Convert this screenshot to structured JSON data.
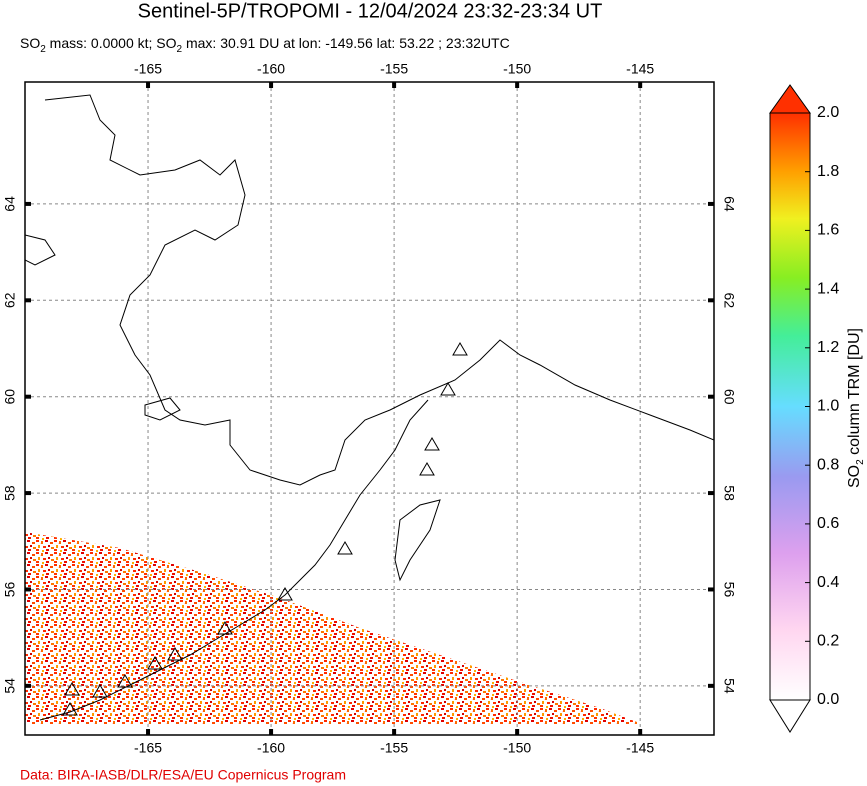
{
  "title": "Sentinel-5P/TROPOMI - 12/04/2024 23:32-23:34 UT",
  "subtitle": [
    "SO",
    "2",
    " mass: 0.0000 kt; SO",
    "2",
    " max: 30.91 DU at lon: -149.56 lat: 53.22 ; 23:32UTC"
  ],
  "map": {
    "xlim": [
      -170,
      -142
    ],
    "ylim": [
      52.98,
      66.53
    ],
    "xticks": [
      -165,
      -160,
      -155,
      -150,
      -145
    ],
    "yticks": [
      54,
      56,
      58,
      60,
      62,
      64
    ],
    "grid": true
  },
  "colorbar": {
    "label": [
      "SO",
      "2",
      " column TRM [DU]"
    ],
    "lim": [
      0,
      2
    ],
    "ticks": [
      {
        "value": 0,
        "label": "0.0"
      },
      {
        "value": 0.2,
        "label": "0.2"
      },
      {
        "value": 0.4,
        "label": "0.4"
      },
      {
        "value": 0.6,
        "label": "0.6"
      },
      {
        "value": 0.8,
        "label": "0.8"
      },
      {
        "value": 1,
        "label": "1.0"
      },
      {
        "value": 1.2,
        "label": "1.2"
      },
      {
        "value": 1.4,
        "label": "1.4"
      },
      {
        "value": 1.6,
        "label": "1.6"
      },
      {
        "value": 1.8,
        "label": "1.8"
      },
      {
        "value": 2,
        "label": "2.0"
      }
    ]
  },
  "footer": "Data: BIRA-IASB/DLR/ESA/EU Copernicus Program"
}
